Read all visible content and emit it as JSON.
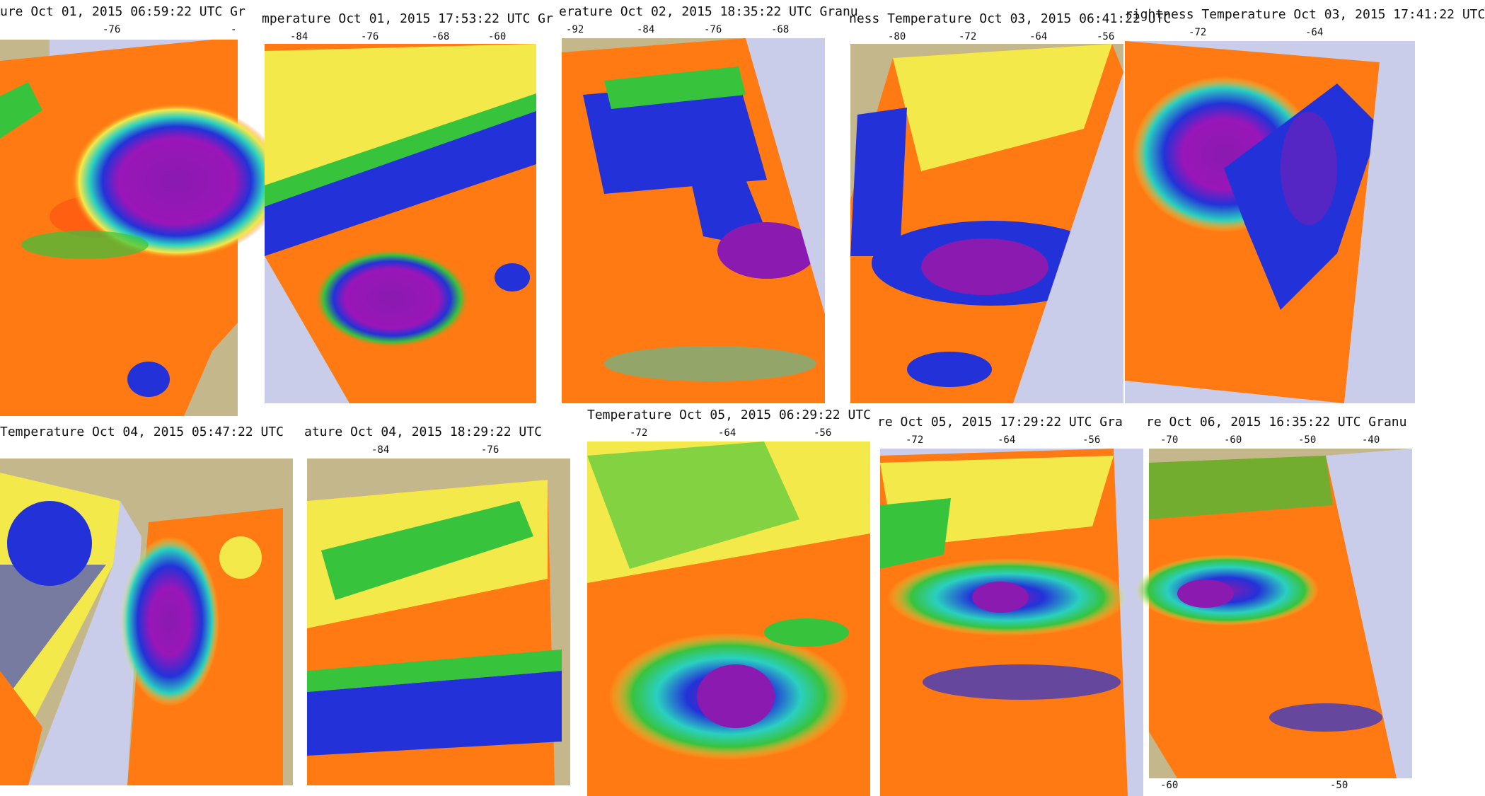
{
  "panels": [
    {
      "id": "p1",
      "caption": "ure   Oct 01, 2015 06:59:22 UTC   Gr",
      "ticks_top": [
        "-76",
        "-"
      ],
      "ticks_bottom": []
    },
    {
      "id": "p2",
      "caption": "mperature   Oct 01, 2015 17:53:22 UTC   Gr",
      "ticks_top": [
        "-84",
        "-76",
        "-68",
        "-60"
      ],
      "ticks_bottom": []
    },
    {
      "id": "p3",
      "caption": "erature   Oct 02, 2015 18:35:22 UTC   Granu",
      "ticks_top": [
        "-92",
        "-84",
        "-76",
        "-68"
      ],
      "ticks_bottom": []
    },
    {
      "id": "p4",
      "caption": "ness Temperature   Oct 03, 2015 06:41:22 UTC",
      "ticks_top": [
        "-80",
        "-72",
        "-64",
        "-56"
      ],
      "ticks_bottom": []
    },
    {
      "id": "p5",
      "caption": "rightness Temperature   Oct 03, 2015 17:41:22 UTC",
      "ticks_top": [
        "-72",
        "-64"
      ],
      "ticks_bottom": []
    },
    {
      "id": "p6",
      "caption": "Temperature   Oct 04, 2015 05:47:22 UTC",
      "ticks_top": [],
      "ticks_bottom": []
    },
    {
      "id": "p7",
      "caption": "ature   Oct 04, 2015 18:29:22 UTC",
      "ticks_top": [
        "-84",
        "-76"
      ],
      "ticks_bottom": []
    },
    {
      "id": "p8",
      "caption": " Temperature   Oct 05, 2015 06:29:22 UTC",
      "ticks_top": [
        "-72",
        "-64",
        "-56"
      ],
      "ticks_bottom": []
    },
    {
      "id": "p9",
      "caption": "re   Oct 05, 2015 17:29:22 UTC   Gra",
      "ticks_top": [
        "-72",
        "-64",
        "-56"
      ],
      "ticks_bottom": []
    },
    {
      "id": "p10",
      "caption": "re   Oct 06, 2015 16:35:22 UTC   Granu",
      "ticks_top": [
        "-70",
        "-60",
        "-50",
        "-40"
      ],
      "ticks_bottom": [
        "-60",
        "-50"
      ]
    }
  ],
  "colors": {
    "ocean_bg": "#c9cdea",
    "land": "#c4b78c",
    "warm": "#ff7a12",
    "warm2": "#ff4d10",
    "yellow": "#f3e94a",
    "green": "#38c33d",
    "cyan": "#2ad0c0",
    "blue": "#2332d8",
    "purple": "#8a1ab0"
  }
}
